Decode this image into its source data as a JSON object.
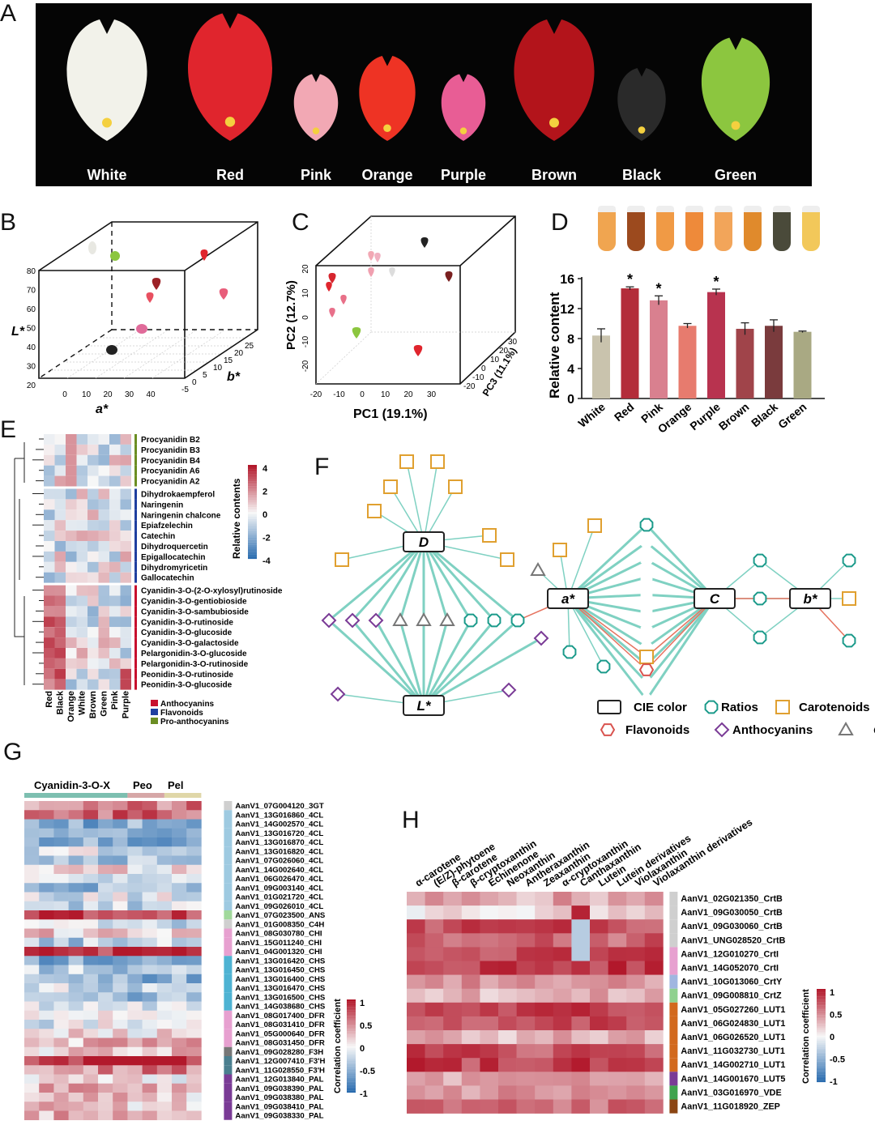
{
  "panels": {
    "A": "A",
    "B": "B",
    "C": "C",
    "D": "D",
    "E": "E",
    "F": "F",
    "G": "G",
    "H": "H"
  },
  "panelA": {
    "spathes": [
      {
        "name": "White",
        "color": "#f2f2ea"
      },
      {
        "name": "Red",
        "color": "#e0252d"
      },
      {
        "name": "Pink",
        "color": "#f2a8b4"
      },
      {
        "name": "Orange",
        "color": "#ee3324"
      },
      {
        "name": "Purple",
        "color": "#e85d95"
      },
      {
        "name": "Brown",
        "color": "#b3141b"
      },
      {
        "name": "Black",
        "color": "#2a2a2a"
      },
      {
        "name": "Green",
        "color": "#8cc63f"
      }
    ]
  },
  "panelB": {
    "zlabel": "L*",
    "xlabel": "a*",
    "ylabel": "b*",
    "zticks": [
      "80",
      "70",
      "60",
      "50",
      "40",
      "30",
      "20"
    ],
    "xticks": [
      "0",
      "10",
      "20",
      "30",
      "40"
    ],
    "yticks": [
      "-5",
      "0",
      "5",
      "10",
      "15",
      "20",
      "25"
    ]
  },
  "panelC": {
    "ylabel": "PC2 (12.7%)",
    "xlabel": "PC1 (19.1%)",
    "zlabel": "PC3 (11.1%)",
    "yticks": [
      "20",
      "10",
      "0",
      "-10",
      "-20"
    ],
    "xticks": [
      "-20",
      "-10",
      "0",
      "10",
      "20",
      "30"
    ],
    "zticks": [
      "-20",
      "-10",
      "0",
      "10",
      "20",
      "30"
    ]
  },
  "chart_data": {
    "type": "bar",
    "ylabel": "Relative content",
    "ylim": [
      0,
      16
    ],
    "yticks": [
      "0",
      "4",
      "8",
      "12",
      "16"
    ],
    "categories": [
      "White",
      "Red",
      "Pink",
      "Orange",
      "Purple",
      "Brown",
      "Black",
      "Green"
    ],
    "values": [
      8.4,
      14.7,
      13.1,
      9.7,
      14.2,
      9.3,
      9.7,
      8.9
    ],
    "errors": [
      0.9,
      0.2,
      0.6,
      0.3,
      0.4,
      0.8,
      0.8,
      0.1
    ],
    "significant": [
      false,
      true,
      true,
      false,
      true,
      false,
      false,
      false
    ],
    "sig_mark": "*",
    "colors": [
      "#c9c3ad",
      "#b32d3a",
      "#d9808f",
      "#e77b6e",
      "#b8334f",
      "#a0444a",
      "#7a3b3d",
      "#a9a983"
    ],
    "vial_colors": [
      "#f0a550",
      "#9c4a1e",
      "#f09a45",
      "#ee8a3a",
      "#f2a55a",
      "#e08a2c",
      "#4a4a3a",
      "#f2c85a"
    ]
  },
  "panelE": {
    "colorbar_label": "Relative contents",
    "colorbar_ticks": [
      "4",
      "2",
      "0",
      "-2",
      "-4"
    ],
    "columns": [
      "Red",
      "Black",
      "Orange",
      "White",
      "Brown",
      "Green",
      "Pink",
      "Purple"
    ],
    "rows": [
      "Procyanidin B2",
      "Procyanidin B3",
      "Procyanidin B4",
      "Procyanidin A6",
      "Procyanidin A2",
      "Dihydrokaempferol",
      "Naringenin",
      "Naringenin chalcone",
      "Epiafzelechin",
      "Catechin",
      "Dihydroquercetin",
      "Epigallocatechin",
      "Dihydromyricetin",
      "Gallocatechin",
      "Cyanidin-3-O-(2-O-xylosyl)rutinoside",
      "Cyanidin-3-O-gentiobioside",
      "Cyanidin-3-O-sambubioside",
      "Cyanidin-3-O-rutinoside",
      "Cyanidin-3-O-glucoside",
      "Cyanidin-3-O-galactoside",
      "Pelargonidin-3-O-glucoside",
      "Pelargonidin-3-O-rutinoside",
      "Peonidin-3-O-rutinoside",
      "Peonidin-3-O-glucoside"
    ],
    "legend": [
      {
        "label": "Anthocyanins",
        "color": "#c8102e"
      },
      {
        "label": "Flavonoids",
        "color": "#1f3f9f"
      },
      {
        "label": "Pro-anthocyanins",
        "color": "#6b8e23"
      }
    ]
  },
  "panelF": {
    "hubs": [
      "D",
      "a*",
      "C",
      "b*",
      "L*"
    ],
    "legend": [
      {
        "label": "CIE color",
        "shape": "rect"
      },
      {
        "label": "Ratios",
        "shape": "octagon"
      },
      {
        "label": "Carotenoids",
        "shape": "square"
      },
      {
        "label": "Flavonoids",
        "shape": "hexagon"
      },
      {
        "label": "Anthocyanins",
        "shape": "diamond"
      },
      {
        "label": "Chl",
        "shape": "triangle"
      }
    ]
  },
  "panelG": {
    "groups": [
      "Cyanidin-3-O-X",
      "Peo",
      "Pel"
    ],
    "colorbar_label": "Correlation coefficient",
    "colorbar_ticks": [
      "1",
      "0.5",
      "0",
      "-0.5",
      "-1"
    ],
    "rows": [
      "AanV1_07G004120_3GT",
      "AanV1_13G016860_4CL",
      "AanV1_14G002570_4CL",
      "AanV1_13G016720_4CL",
      "AanV1_13G016870_4CL",
      "AanV1_13G016820_4CL",
      "AanV1_07G026060_4CL",
      "AanV1_14G002640_4CL",
      "AanV1_06G026470_4CL",
      "AanV1_09G003140_4CL",
      "AanV1_01G021720_4CL",
      "AanV1_09G026010_4CL",
      "AanV1_07G023500_ANS",
      "AanV1_01G008350_C4H",
      "AanV1_08G030780_CHI",
      "AanV1_15G011240_CHI",
      "AanV1_04G001320_CHI",
      "AanV1_13G016420_CHS",
      "AanV1_13G016450_CHS",
      "AanV1_13G016400_CHS",
      "AanV1_13G016470_CHS",
      "AanV1_13G016500_CHS",
      "AanV1_14G038680_CHS",
      "AanV1_08G017400_DFR",
      "AanV1_08G031410_DFR",
      "AanV1_05G000640_DFR",
      "AanV1_08G031450_DFR",
      "AanV1_09G028280_F3H",
      "AanV1_12G007410_F3'H",
      "AanV1_11G028550_F3'H",
      "AanV1_12G013840_PAL",
      "AanV1_09G038390_PAL",
      "AanV1_09G038380_PAL",
      "AanV1_09G038410_PAL",
      "AanV1_09G038330_PAL"
    ]
  },
  "panelH": {
    "columns": [
      "α-carotene",
      "(E/Z)-phytoene",
      "β-carotene",
      "β-cryptoxanthin",
      "Echinenone",
      "Neoxanthin",
      "Antheraxanthin",
      "Zeaxanthin",
      "α-cryptoxanthin",
      "Canthaxanthin",
      "Lutein",
      "Lutein derivatives",
      "Violaxanthin",
      "Violaxanthin derivatives"
    ],
    "rows": [
      "AanV1_02G021350_CrtB",
      "AanV1_09G030050_CrtB",
      "AanV1_09G030060_CrtB",
      "AanV1_UNG028520_CrtB",
      "AanV1_12G010270_CrtI",
      "AanV1_14G052070_CrtI",
      "AanV1_10G013060_CrtY",
      "AanV1_09G008810_CrtZ",
      "AanV1_05G027260_LUT1",
      "AanV1_06G024830_LUT1",
      "AanV1_06G026520_LUT1",
      "AanV1_11G032730_LUT1",
      "AanV1_14G002710_LUT1",
      "AanV1_14G001670_LUT5",
      "AanV1_03G016970_VDE",
      "AanV1_11G018920_ZEP"
    ],
    "colorbar_label": "Correlation coefficient",
    "colorbar_ticks": [
      "1",
      "0.5",
      "0",
      "-0.5",
      "-1"
    ]
  }
}
